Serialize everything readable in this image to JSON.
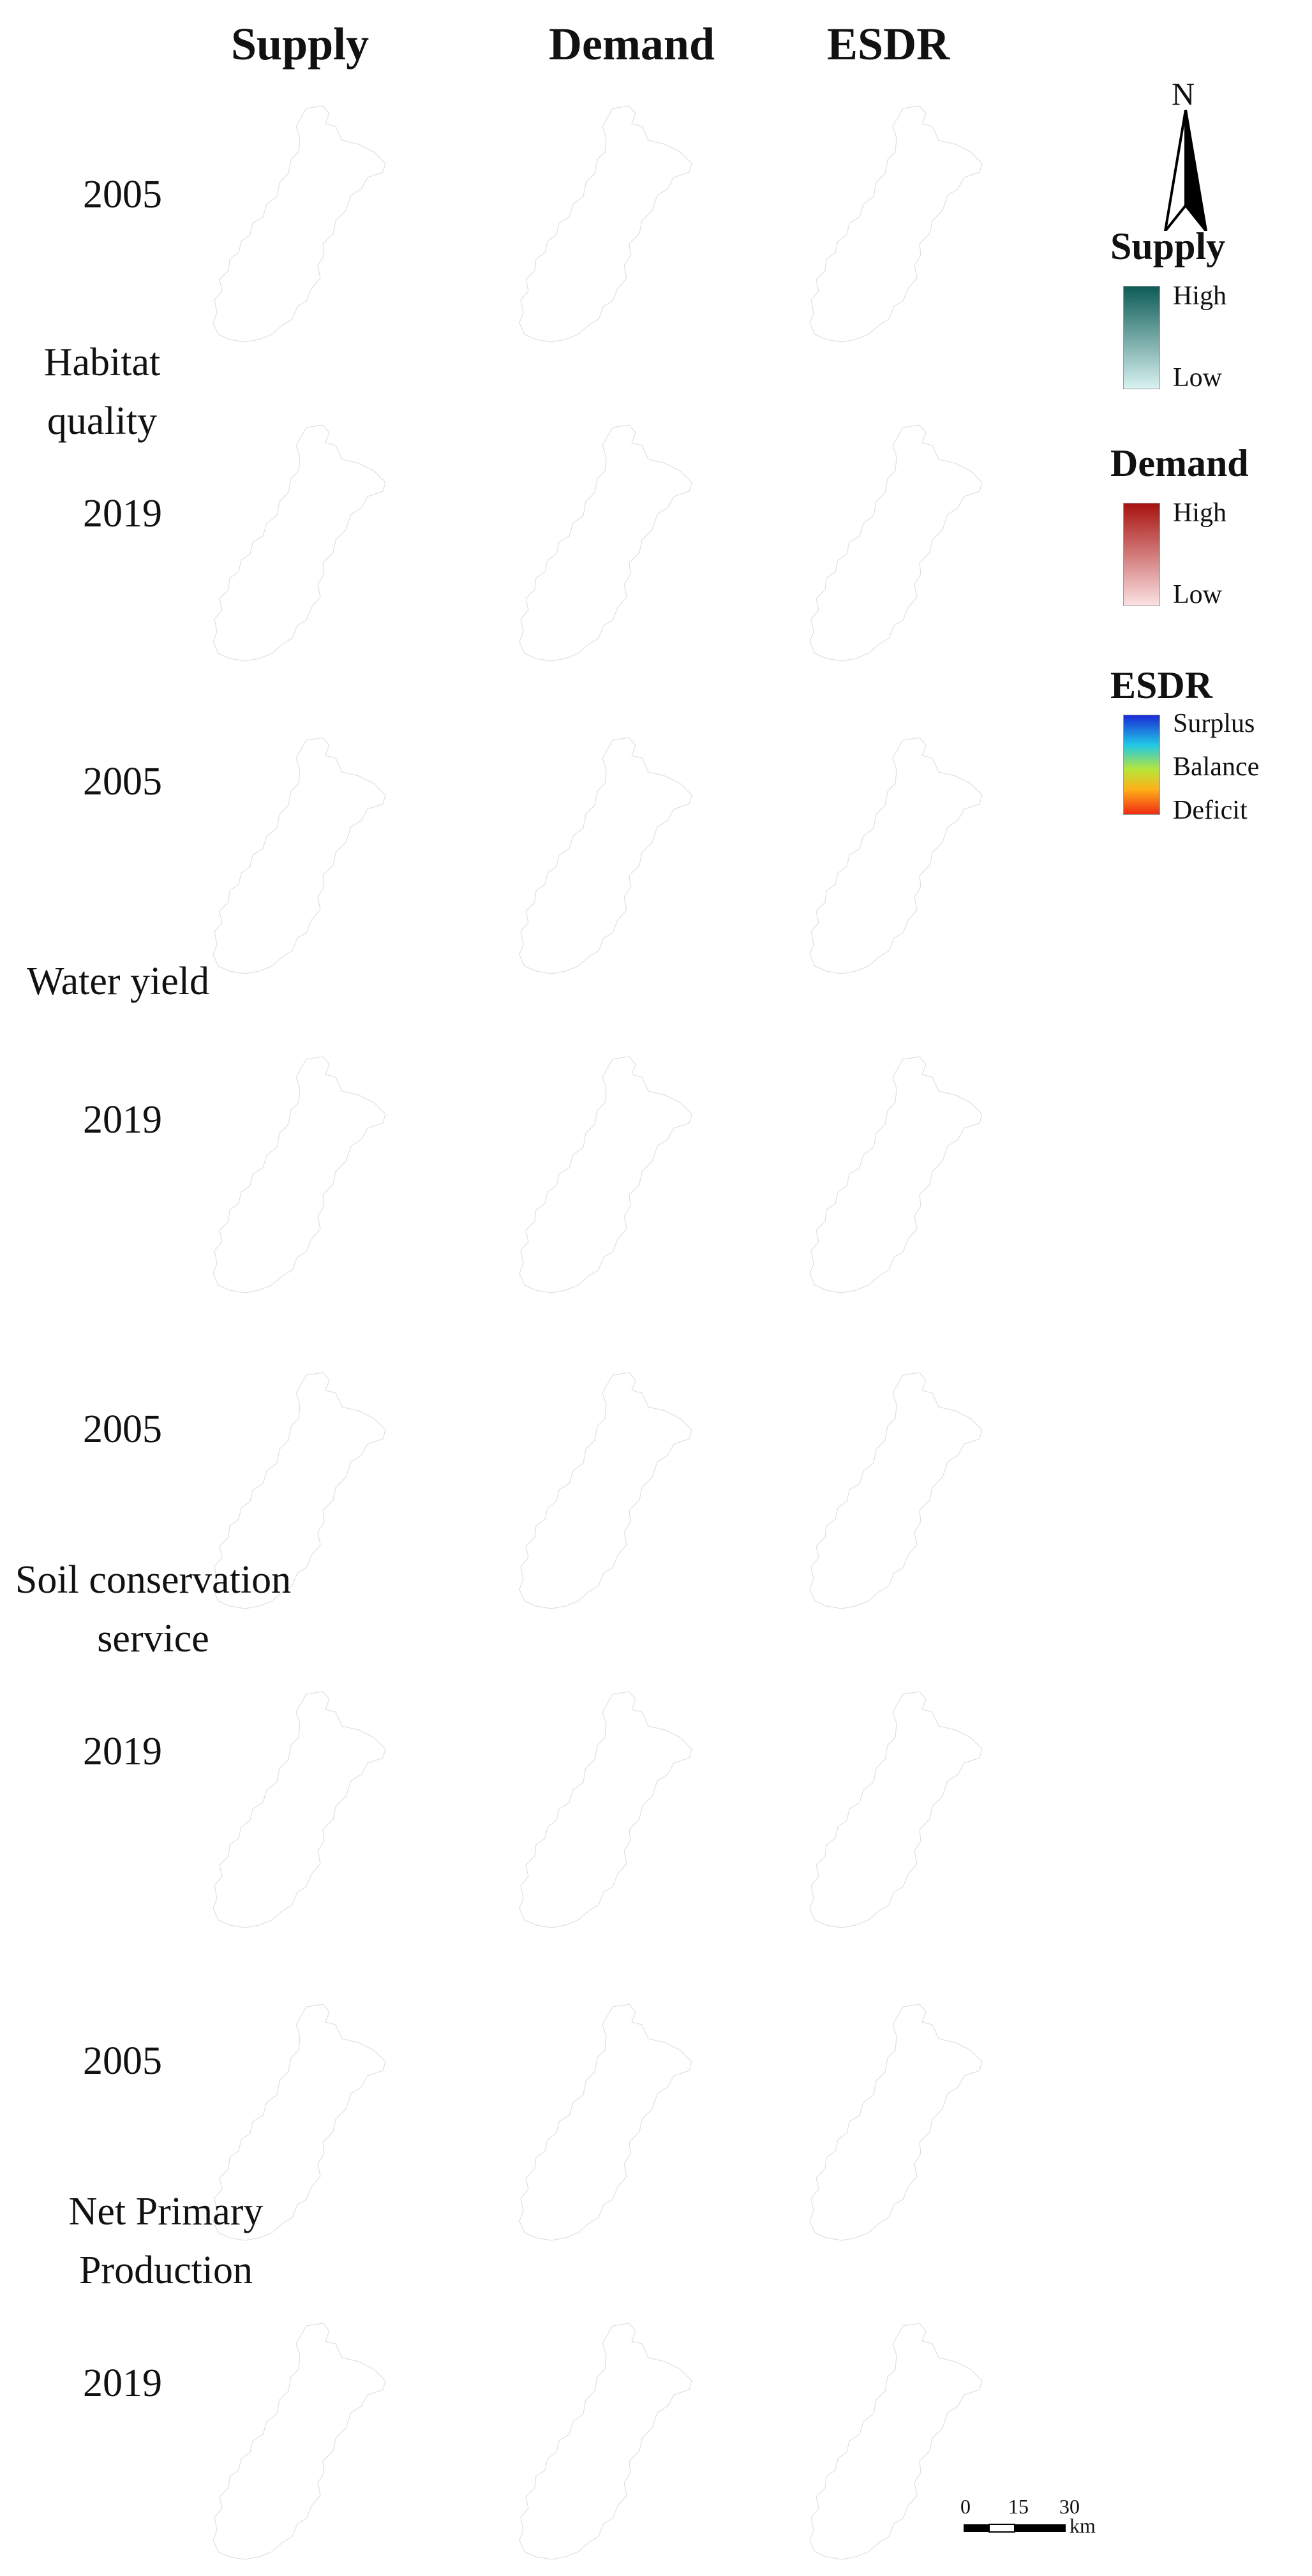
{
  "columns": {
    "supply": "Supply",
    "demand": "Demand",
    "esdr": "ESDR"
  },
  "rows": [
    {
      "year": "2005"
    },
    {
      "year": "2019"
    },
    {
      "year": "2005"
    },
    {
      "year": "2019"
    },
    {
      "year": "2005"
    },
    {
      "year": "2019"
    },
    {
      "year": "2005"
    },
    {
      "year": "2019"
    }
  ],
  "services": {
    "habitat": {
      "line1": "Habitat",
      "line2": "quality"
    },
    "water": {
      "line1": "Water  yield"
    },
    "soil": {
      "line1": "Soil conservation",
      "line2": "service"
    },
    "npp": {
      "line1": "Net Primary",
      "line2": "Production"
    }
  },
  "north_label": "N",
  "legend": {
    "supply": {
      "title": "Supply",
      "high": "High",
      "low": "Low",
      "color_high": "#0d5c57",
      "color_low": "#d8f2f0"
    },
    "demand": {
      "title": "Demand",
      "high": "High",
      "low": "Low",
      "color_high": "#a8130f",
      "color_low": "#fbe1e3"
    },
    "esdr": {
      "title": "ESDR",
      "surplus": "Surplus",
      "balance": "Balance",
      "deficit": "Deficit"
    }
  },
  "scale_bar": {
    "ticks": [
      "0",
      "15",
      "30"
    ],
    "unit": "km"
  },
  "colors": {
    "supply_dark": "#0e5a56",
    "supply_mid": "#5f9c98",
    "supply_light": "#cfeeec",
    "demand_light": "#f8d3d6",
    "demand_mid": "#e89a9b",
    "demand_dark": "#9b1410",
    "esdr_blue": "#1a3bd6",
    "esdr_cyan": "#26c9e8",
    "esdr_yellow": "#e6e533",
    "esdr_orange": "#ff8a18",
    "esdr_red": "#f03414",
    "esdr_green": "#9ad93a"
  }
}
